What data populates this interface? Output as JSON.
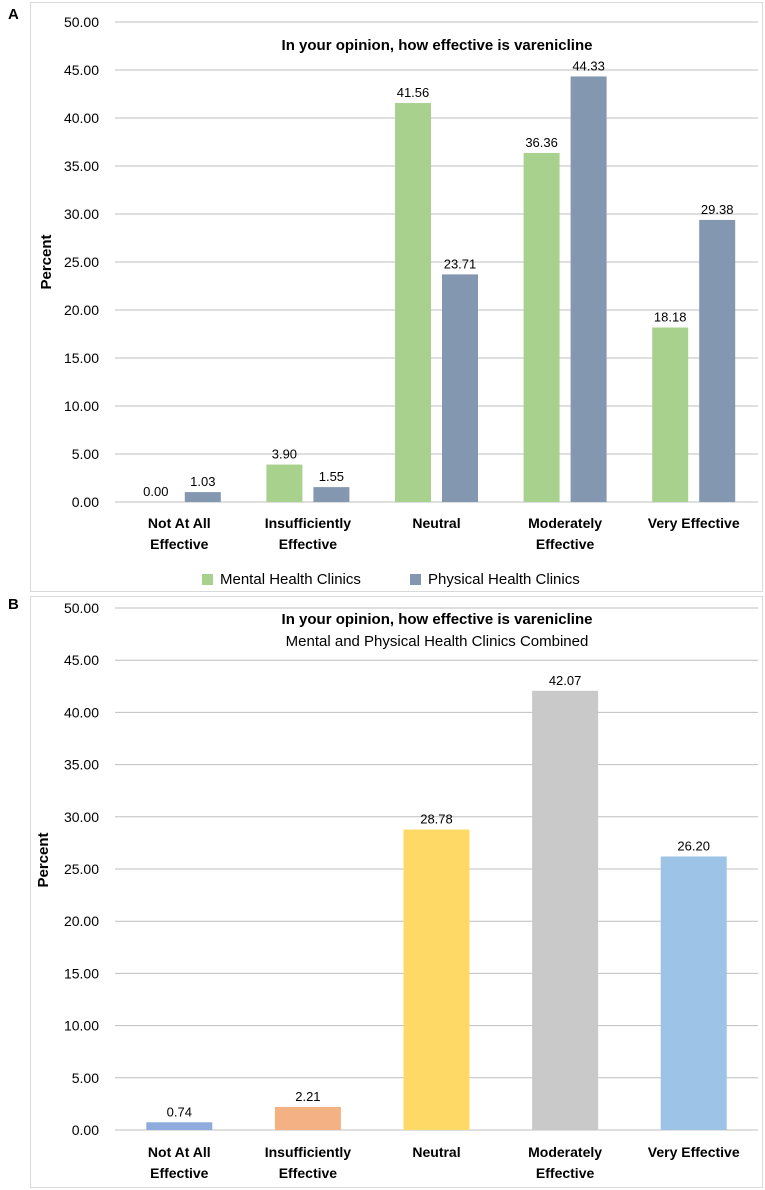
{
  "panels": {
    "a": {
      "letter": "A"
    },
    "b": {
      "letter": "B"
    }
  },
  "colors": {
    "mental": "#a9d18e",
    "physical": "#8497b0",
    "grid": "#bfbfbf",
    "b_bars": [
      "#8faadc",
      "#f4b183",
      "#ffd966",
      "#c9c9c9",
      "#9dc3e6"
    ]
  },
  "chart_data": [
    {
      "type": "bar",
      "title": "In your opinion, how effective is varenicline",
      "ylabel": "Percent",
      "xlabel": "",
      "ylim": [
        0,
        50
      ],
      "yticks": [
        "0.00",
        "5.00",
        "10.00",
        "15.00",
        "20.00",
        "25.00",
        "30.00",
        "35.00",
        "40.00",
        "45.00",
        "50.00"
      ],
      "categories": [
        [
          "Not At All",
          "Effective"
        ],
        [
          "Insufficiently",
          "Effective"
        ],
        [
          "Neutral"
        ],
        [
          "Moderately",
          "Effective"
        ],
        [
          "Very Effective"
        ]
      ],
      "series": [
        {
          "name": "Mental Health Clinics",
          "values": [
            0.0,
            3.9,
            41.56,
            36.36,
            18.18
          ],
          "labels": [
            "0.00",
            "3.90",
            "41.56",
            "36.36",
            "18.18"
          ]
        },
        {
          "name": "Physical Health Clinics",
          "values": [
            1.03,
            1.55,
            23.71,
            44.33,
            29.38
          ],
          "labels": [
            "1.03",
            "1.55",
            "23.71",
            "44.33",
            "29.38"
          ]
        }
      ],
      "legend": "bottom",
      "grid": true
    },
    {
      "type": "bar",
      "title": "In your opinion, how effective is varenicline",
      "subtitle": "Mental and Physical Health Clinics Combined",
      "ylabel": "Percent",
      "xlabel": "",
      "ylim": [
        0,
        50
      ],
      "yticks": [
        "0.00",
        "5.00",
        "10.00",
        "15.00",
        "20.00",
        "25.00",
        "30.00",
        "35.00",
        "40.00",
        "45.00",
        "50.00"
      ],
      "categories": [
        [
          "Not At All",
          "Effective"
        ],
        [
          "Insufficiently",
          "Effective"
        ],
        [
          "Neutral"
        ],
        [
          "Moderately",
          "Effective"
        ],
        [
          "Very Effective"
        ]
      ],
      "values": [
        0.74,
        2.21,
        28.78,
        42.07,
        26.2
      ],
      "labels": [
        "0.74",
        "2.21",
        "28.78",
        "42.07",
        "26.20"
      ],
      "legend": "none",
      "grid": true
    }
  ]
}
